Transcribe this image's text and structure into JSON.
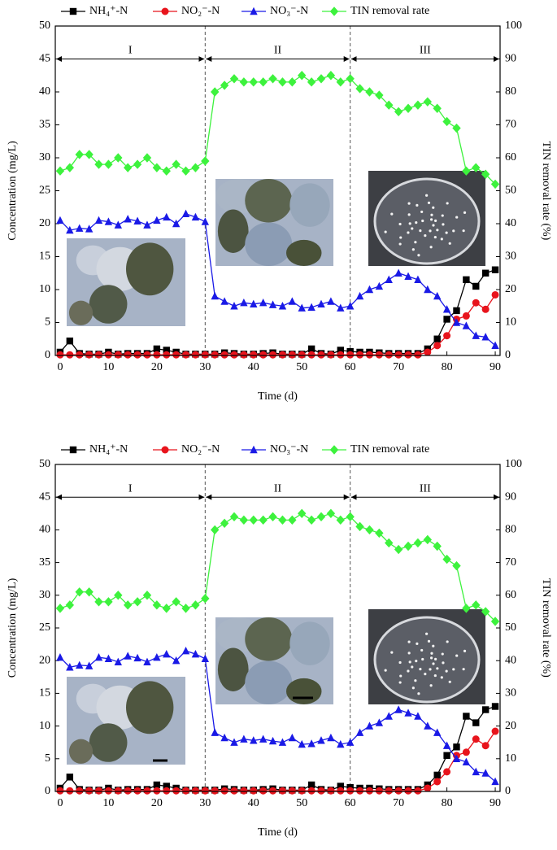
{
  "chart_data": [
    {
      "type": "line",
      "x_label": "Time (d)",
      "y_label": "Concentration (mg/L)",
      "y2_label": "TIN removal rate (%)",
      "xlim": [
        -1,
        91
      ],
      "xticks": [
        0,
        10,
        20,
        30,
        40,
        50,
        60,
        70,
        80,
        90
      ],
      "ylim": [
        0,
        50
      ],
      "yticks": [
        0,
        5,
        10,
        15,
        20,
        25,
        30,
        35,
        40,
        45,
        50
      ],
      "y2lim": [
        0,
        100
      ],
      "y2ticks": [
        0,
        10,
        20,
        30,
        40,
        50,
        60,
        70,
        80,
        90,
        100
      ],
      "phases": [
        "I",
        "II",
        "III"
      ],
      "phase_boundaries": [
        30,
        60
      ],
      "x": [
        0,
        2,
        4,
        6,
        8,
        10,
        12,
        14,
        16,
        18,
        20,
        22,
        24,
        26,
        28,
        30,
        32,
        34,
        36,
        38,
        40,
        42,
        44,
        46,
        48,
        50,
        52,
        54,
        56,
        58,
        60,
        62,
        64,
        66,
        68,
        70,
        72,
        74,
        76,
        78,
        80,
        82,
        84,
        86,
        88,
        90
      ],
      "series": [
        {
          "name": "NH₄⁺-N",
          "color": "#000000",
          "marker": "square",
          "values": [
            0.5,
            2.2,
            0.3,
            0.2,
            0.2,
            0.5,
            0.2,
            0.3,
            0.3,
            0.3,
            1.0,
            0.8,
            0.5,
            0.2,
            0.2,
            0.2,
            0.2,
            0.4,
            0.3,
            0.2,
            0.2,
            0.3,
            0.4,
            0.2,
            0.2,
            0.2,
            1.0,
            0.3,
            0.2,
            0.8,
            0.6,
            0.5,
            0.5,
            0.4,
            0.3,
            0.3,
            0.3,
            0.3,
            1.0,
            2.5,
            5.5,
            6.8,
            11.5,
            10.5,
            12.5,
            13.0
          ]
        },
        {
          "name": "NO₂⁻-N",
          "color": "#e8141c",
          "marker": "circle",
          "values": [
            0.1,
            0.1,
            0.1,
            0.1,
            0.1,
            0.1,
            0.1,
            0.1,
            0.1,
            0.1,
            0.1,
            0.1,
            0.1,
            0.1,
            0.1,
            0.1,
            0.1,
            0.1,
            0.1,
            0.1,
            0.1,
            0.1,
            0.1,
            0.1,
            0.1,
            0.1,
            0.1,
            0.1,
            0.1,
            0.1,
            0.1,
            0.1,
            0.1,
            0.1,
            0.1,
            0.1,
            0.1,
            0.1,
            0.5,
            1.5,
            3.0,
            5.5,
            6.0,
            8.0,
            7.0,
            9.2
          ]
        },
        {
          "name": "NO₃⁻-N",
          "color": "#1a1ae6",
          "marker": "triangle",
          "values": [
            20.5,
            19.0,
            19.3,
            19.2,
            20.5,
            20.3,
            19.8,
            20.7,
            20.4,
            19.8,
            20.5,
            21.0,
            20.0,
            21.5,
            21.0,
            20.3,
            9.0,
            8.2,
            7.5,
            8.0,
            7.8,
            8.0,
            7.7,
            7.5,
            8.2,
            7.2,
            7.3,
            7.8,
            8.2,
            7.2,
            7.5,
            9.0,
            10.0,
            10.5,
            11.5,
            12.5,
            12.0,
            11.5,
            10.0,
            9.0,
            7.0,
            5.0,
            4.5,
            3.0,
            2.8,
            1.5
          ]
        },
        {
          "name": "TIN removal rate",
          "color": "#3df23d",
          "marker": "diamond",
          "axis": "y2",
          "values": [
            56,
            57,
            61,
            61,
            58,
            58,
            60,
            57,
            58,
            60,
            57,
            56,
            58,
            56,
            57,
            59,
            80,
            82,
            84,
            83,
            83,
            83,
            84,
            83,
            83,
            85,
            83,
            84,
            85,
            83,
            84,
            81,
            80,
            79,
            76,
            74,
            75,
            76,
            77,
            75,
            71,
            69,
            56,
            57,
            55,
            52
          ]
        }
      ]
    },
    {
      "type": "line",
      "x_label": "Time (d)",
      "y_label": "Concentration (mg/L)",
      "y2_label": "TIN removal rate (%)",
      "xlim": [
        -1,
        91
      ],
      "xticks": [
        0,
        10,
        20,
        30,
        40,
        50,
        60,
        70,
        80,
        90
      ],
      "ylim": [
        0,
        50
      ],
      "yticks": [
        0,
        5,
        10,
        15,
        20,
        25,
        30,
        35,
        40,
        45,
        50
      ],
      "y2lim": [
        0,
        100
      ],
      "y2ticks": [
        0,
        10,
        20,
        30,
        40,
        50,
        60,
        70,
        80,
        90,
        100
      ],
      "phases": [
        "I",
        "II",
        "III"
      ],
      "phase_boundaries": [
        30,
        60
      ],
      "x": [
        0,
        2,
        4,
        6,
        8,
        10,
        12,
        14,
        16,
        18,
        20,
        22,
        24,
        26,
        28,
        30,
        32,
        34,
        36,
        38,
        40,
        42,
        44,
        46,
        48,
        50,
        52,
        54,
        56,
        58,
        60,
        62,
        64,
        66,
        68,
        70,
        72,
        74,
        76,
        78,
        80,
        82,
        84,
        86,
        88,
        90
      ],
      "series": [
        {
          "name": "NH₄⁺-N",
          "color": "#000000",
          "marker": "square",
          "values": [
            0.5,
            2.2,
            0.3,
            0.2,
            0.2,
            0.5,
            0.2,
            0.3,
            0.3,
            0.3,
            1.0,
            0.8,
            0.5,
            0.2,
            0.2,
            0.2,
            0.2,
            0.4,
            0.3,
            0.2,
            0.2,
            0.3,
            0.4,
            0.2,
            0.2,
            0.2,
            1.0,
            0.3,
            0.2,
            0.8,
            0.6,
            0.5,
            0.5,
            0.4,
            0.3,
            0.3,
            0.3,
            0.3,
            1.0,
            2.5,
            5.5,
            6.8,
            11.5,
            10.5,
            12.5,
            13.0
          ]
        },
        {
          "name": "NO₂⁻-N",
          "color": "#e8141c",
          "marker": "circle",
          "values": [
            0.1,
            0.1,
            0.1,
            0.1,
            0.1,
            0.1,
            0.1,
            0.1,
            0.1,
            0.1,
            0.1,
            0.1,
            0.1,
            0.1,
            0.1,
            0.1,
            0.1,
            0.1,
            0.1,
            0.1,
            0.1,
            0.1,
            0.1,
            0.1,
            0.1,
            0.1,
            0.1,
            0.1,
            0.1,
            0.1,
            0.1,
            0.1,
            0.1,
            0.1,
            0.1,
            0.1,
            0.1,
            0.1,
            0.5,
            1.5,
            3.0,
            5.5,
            6.0,
            8.0,
            7.0,
            9.2
          ]
        },
        {
          "name": "NO₃⁻-N",
          "color": "#1a1ae6",
          "marker": "triangle",
          "values": [
            20.5,
            19.0,
            19.3,
            19.2,
            20.5,
            20.3,
            19.8,
            20.7,
            20.4,
            19.8,
            20.5,
            21.0,
            20.0,
            21.5,
            21.0,
            20.3,
            9.0,
            8.2,
            7.5,
            8.0,
            7.8,
            8.0,
            7.7,
            7.5,
            8.2,
            7.2,
            7.3,
            7.8,
            8.2,
            7.2,
            7.5,
            9.0,
            10.0,
            10.5,
            11.5,
            12.5,
            12.0,
            11.5,
            10.0,
            9.0,
            7.0,
            5.0,
            4.5,
            3.0,
            2.8,
            1.5
          ]
        },
        {
          "name": "TIN removal rate",
          "color": "#3df23d",
          "marker": "diamond",
          "axis": "y2",
          "values": [
            56,
            57,
            61,
            61,
            58,
            58,
            60,
            57,
            58,
            60,
            57,
            56,
            58,
            56,
            57,
            59,
            80,
            82,
            84,
            83,
            83,
            83,
            84,
            83,
            83,
            85,
            83,
            84,
            85,
            83,
            84,
            81,
            80,
            79,
            76,
            74,
            75,
            76,
            77,
            75,
            71,
            69,
            56,
            57,
            55,
            52
          ]
        }
      ]
    }
  ]
}
